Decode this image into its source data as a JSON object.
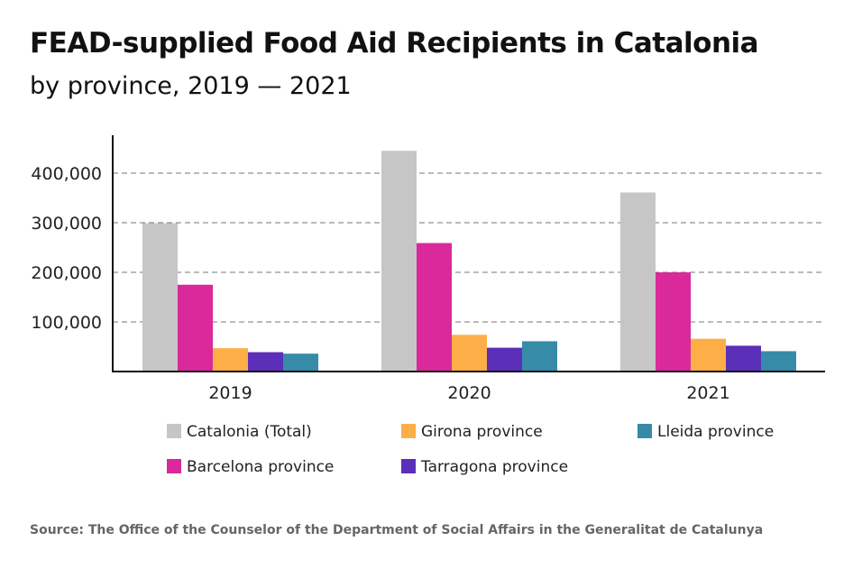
{
  "chart_data": {
    "type": "bar",
    "title": "FEAD-supplied Food Aid Recipients in Catalonia",
    "subtitle": "by province, 2019 — 2021",
    "categories": [
      "2019",
      "2020",
      "2021"
    ],
    "series": [
      {
        "name": "Catalonia (Total)",
        "color": "#c6c6c6",
        "values": [
          299000,
          445000,
          361000
        ]
      },
      {
        "name": "Barcelona province",
        "color": "#d9299b",
        "values": [
          175000,
          259000,
          200000
        ]
      },
      {
        "name": "Girona province",
        "color": "#fdae47",
        "values": [
          47000,
          74000,
          66000
        ]
      },
      {
        "name": "Tarragona province",
        "color": "#5b2fb8",
        "values": [
          39000,
          48000,
          52000
        ]
      },
      {
        "name": "Lleida province",
        "color": "#368ba9",
        "values": [
          36000,
          61000,
          41000
        ]
      }
    ],
    "yticks": [
      "100,000",
      "200,000",
      "300,000",
      "400,000"
    ],
    "ytick_values": [
      100000,
      200000,
      300000,
      400000
    ],
    "ylim": [
      0,
      470000
    ],
    "grid": "dashed horizontal",
    "legend_placement": "bottom",
    "source": "Source: The Office of the Counselor of the Department of Social Affairs in the Generalitat de Catalunya"
  }
}
